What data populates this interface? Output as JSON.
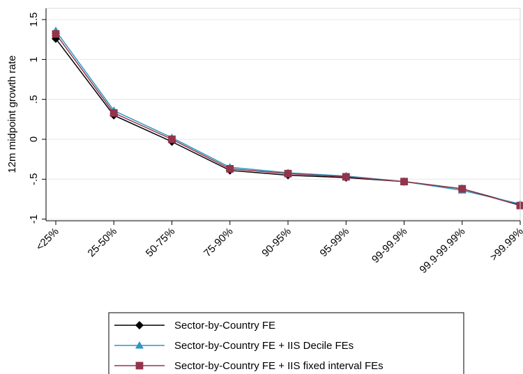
{
  "chart_data": {
    "type": "line",
    "title": "",
    "xlabel": "",
    "ylabel": "12m midpoint growth rate",
    "categories": [
      "<25%",
      "25-50%",
      "50-75%",
      "75-90%",
      "90-95%",
      "95-99%",
      "99-99.9%",
      "99.9-99.99%",
      ">99.99%"
    ],
    "ylim": [
      -1.1,
      1.6
    ],
    "yticks": [
      {
        "value": -1,
        "label": "-1"
      },
      {
        "value": -0.5,
        "label": "-.5"
      },
      {
        "value": 0,
        "label": "0"
      },
      {
        "value": 0.5,
        "label": ".5"
      },
      {
        "value": 1,
        "label": "1"
      },
      {
        "value": 1.5,
        "label": "1.5"
      }
    ],
    "grid": true,
    "legend_position": "bottom",
    "series": [
      {
        "name": "Sector-by-Country FE",
        "color": "#000000",
        "marker": "diamond",
        "values": [
          1.26,
          0.3,
          -0.03,
          -0.39,
          -0.45,
          -0.48,
          -0.53,
          -0.62,
          -0.82
        ]
      },
      {
        "name": "Sector-by-Country FE + IIS Decile FEs",
        "color": "#2a97c4",
        "marker": "triangle",
        "values": [
          1.36,
          0.36,
          0.02,
          -0.35,
          -0.42,
          -0.46,
          -0.53,
          -0.64,
          -0.81
        ]
      },
      {
        "name": "Sector-by-Country FE + IIS fixed interval FEs",
        "color": "#93344a",
        "marker": "square",
        "values": [
          1.32,
          0.33,
          0.0,
          -0.37,
          -0.43,
          -0.47,
          -0.53,
          -0.62,
          -0.83
        ]
      }
    ]
  }
}
